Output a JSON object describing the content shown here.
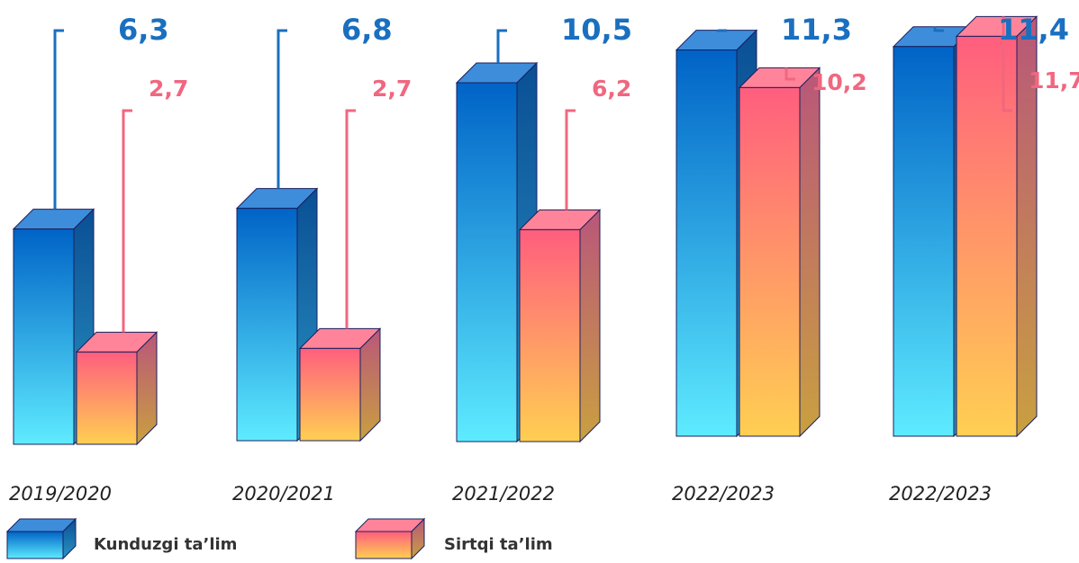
{
  "chart_data": {
    "type": "bar",
    "categories": [
      "2019/2020",
      "2020/2021",
      "2021/2022",
      "2022/2023",
      "2022/2023"
    ],
    "series": [
      {
        "name": "Kunduzgi ta’lim",
        "values": [
          6.3,
          6.8,
          10.5,
          11.3,
          11.4
        ],
        "labels": [
          "6,3",
          "6,8",
          "10,5",
          "11,3",
          "11,4"
        ]
      },
      {
        "name": "Sirtqi ta’lim",
        "values": [
          2.7,
          2.7,
          6.2,
          10.2,
          11.7
        ],
        "labels": [
          "2,7",
          "2,7",
          "6,2",
          "10,2",
          "11,7"
        ]
      }
    ],
    "legend": "bottom-left",
    "grid": false,
    "colors": {
      "day_top": "#0063C6",
      "day_bottom": "#5EEBFF",
      "day_side": "#0A4F94",
      "day_cap": "#3D8DDB",
      "day_text": "#1A6FBF",
      "corr_top": "#FF5E7E",
      "corr_bottom": "#FFCF52",
      "corr_side": "#B9567A",
      "corr_cap": "#FF849A",
      "corr_text": "#F0677F",
      "outline": "#1B1F5E"
    }
  }
}
